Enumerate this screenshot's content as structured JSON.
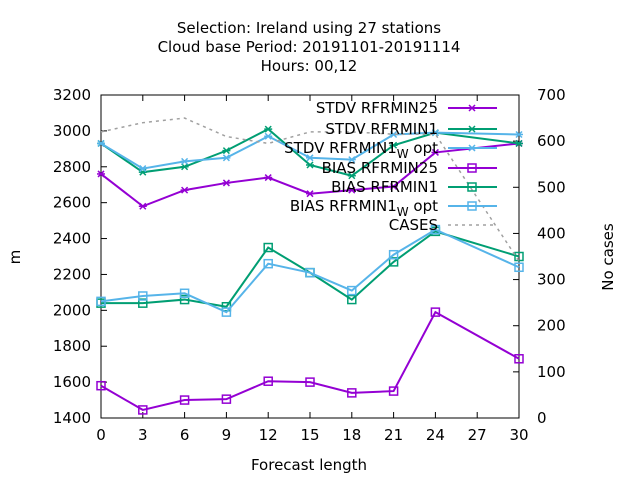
{
  "chart_data": {
    "type": "line",
    "title_lines": [
      "Selection: Ireland using    27 stations",
      "Cloud base   Period: 20191101-20191114",
      "Hours:  00,12"
    ],
    "xlabel": "Forecast length",
    "ylabel": "m",
    "y2label": "No cases",
    "x": [
      0,
      3,
      6,
      9,
      12,
      15,
      18,
      21,
      24,
      27,
      30
    ],
    "xlim": [
      0,
      30
    ],
    "ylim": [
      1400,
      3200
    ],
    "y2lim": [
      0,
      700
    ],
    "x_ticks": [
      "0",
      "3",
      "6",
      "9",
      "12",
      "15",
      "18",
      "21",
      "24",
      "27",
      "30"
    ],
    "y_ticks": [
      "1400",
      "1600",
      "1800",
      "2000",
      "2200",
      "2400",
      "2600",
      "2800",
      "3000",
      "3200"
    ],
    "y2_ticks": [
      "0",
      "100",
      "200",
      "300",
      "400",
      "500",
      "600",
      "700"
    ],
    "grid": false,
    "legend_position": "top-right",
    "series": [
      {
        "name": "STDV RFRMIN25",
        "color": "#9400d3",
        "marker": "asterisk",
        "axis": "y1",
        "x": [
          0,
          3,
          6,
          9,
          12,
          15,
          18,
          21,
          24,
          30
        ],
        "values": [
          2760,
          2580,
          2670,
          2710,
          2740,
          2650,
          2670,
          2690,
          2880,
          2930
        ]
      },
      {
        "name": "STDV RFRMIN1",
        "color": "#009e73",
        "marker": "asterisk",
        "axis": "y1",
        "x": [
          0,
          3,
          6,
          9,
          12,
          15,
          18,
          21,
          24,
          30
        ],
        "values": [
          2930,
          2770,
          2800,
          2890,
          3010,
          2810,
          2750,
          2920,
          2990,
          2930
        ]
      },
      {
        "name": "STDV RFRMIN1_W_opt",
        "color": "#56b4e9",
        "marker": "asterisk",
        "axis": "y1",
        "x": [
          0,
          3,
          6,
          9,
          12,
          15,
          18,
          21,
          24,
          30
        ],
        "values": [
          2930,
          2790,
          2830,
          2850,
          2970,
          2850,
          2840,
          2980,
          2990,
          2980
        ]
      },
      {
        "name": "BIAS RFRMIN25",
        "color": "#9400d3",
        "marker": "square",
        "axis": "y1",
        "x": [
          0,
          3,
          6,
          9,
          12,
          15,
          18,
          21,
          24,
          30
        ],
        "values": [
          1580,
          1445,
          1500,
          1505,
          1605,
          1600,
          1540,
          1550,
          1990,
          1730
        ]
      },
      {
        "name": "BIAS RFRMIN1",
        "color": "#009e73",
        "marker": "square",
        "axis": "y1",
        "x": [
          0,
          3,
          6,
          9,
          12,
          15,
          18,
          21,
          24,
          30
        ],
        "values": [
          2040,
          2040,
          2060,
          2020,
          2350,
          2210,
          2060,
          2270,
          2440,
          2300
        ]
      },
      {
        "name": "BIAS RFRMIN1_W_opt",
        "color": "#56b4e9",
        "marker": "square",
        "axis": "y1",
        "x": [
          0,
          3,
          6,
          9,
          12,
          15,
          18,
          21,
          24,
          30
        ],
        "values": [
          2050,
          2080,
          2095,
          1990,
          2260,
          2210,
          2110,
          2310,
          2450,
          2240
        ]
      },
      {
        "name": "CASES",
        "color": "#a0a0a0",
        "marker": "none",
        "dash": true,
        "axis": "y2",
        "x": [
          0,
          3,
          6,
          9,
          12,
          15,
          18,
          21,
          24,
          30
        ],
        "values": [
          620,
          640,
          650,
          610,
          595,
          620,
          620,
          615,
          615,
          340
        ]
      }
    ],
    "legend_labels": [
      {
        "main": "STDV RFRMIN25",
        "sub": ""
      },
      {
        "main": "STDV RFRMIN1",
        "sub": ""
      },
      {
        "main": "STDV RFRMIN1",
        "sub": "W",
        "tail": " opt"
      },
      {
        "main": "BIAS RFRMIN25",
        "sub": ""
      },
      {
        "main": "BIAS RFRMIN1",
        "sub": ""
      },
      {
        "main": "BIAS RFRMIN1",
        "sub": "W",
        "tail": " opt"
      },
      {
        "main": "CASES",
        "sub": ""
      }
    ]
  }
}
